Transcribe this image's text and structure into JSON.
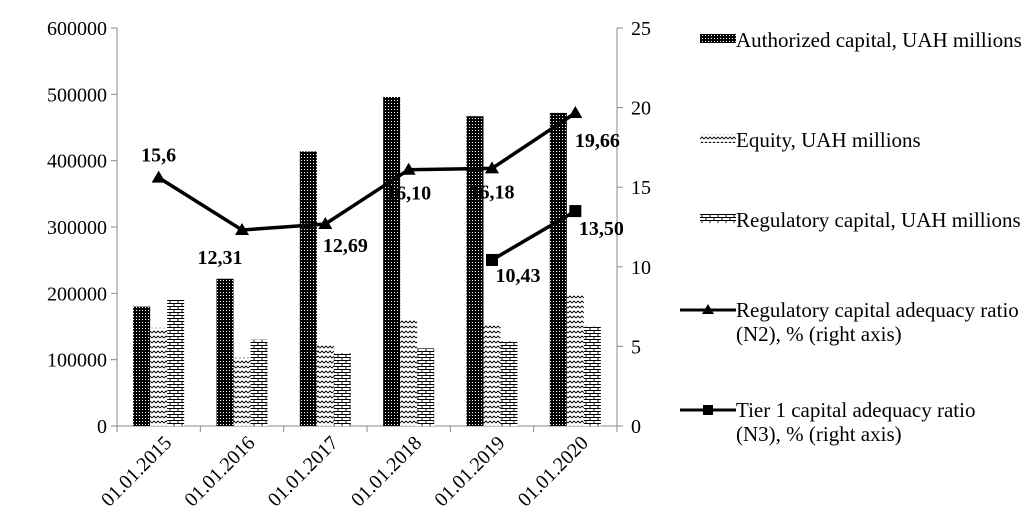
{
  "chart_data": {
    "type": "bar",
    "categories": [
      "01.01.2015",
      "01.01.2016",
      "01.01.2017",
      "01.01.2018",
      "01.01.2019",
      "01.01.2020"
    ],
    "series": [
      {
        "name": "Authorized capital, UAH millions",
        "color": "#000000",
        "pattern": "dense",
        "values": [
          180000,
          222000,
          414000,
          496000,
          467000,
          472000
        ]
      },
      {
        "name": "Equity, UAH millions",
        "color": "#000000",
        "pattern": "wave",
        "values": [
          148000,
          103000,
          123000,
          160000,
          155000,
          200000
        ]
      },
      {
        "name": "Regulatory capital, UAH millions",
        "color": "#000000",
        "pattern": "brick",
        "values": [
          190000,
          130000,
          110000,
          117000,
          128000,
          150000
        ]
      },
      {
        "name": "Regulatory capital adequacy ratio (N2), % (right axis)",
        "type": "line",
        "marker": "triangle",
        "axis": "y2",
        "color": "#000000",
        "values": [
          15.6,
          12.31,
          12.69,
          16.1,
          16.18,
          19.66
        ],
        "value_labels": [
          "15,6",
          "12,31",
          "12,69",
          "16,10",
          "16,18",
          "19,66"
        ]
      },
      {
        "name": "Tier 1 capital adequacy ratio (N3), % (right axis)",
        "type": "line",
        "marker": "square",
        "axis": "y2",
        "color": "#000000",
        "values": [
          null,
          null,
          null,
          null,
          10.43,
          13.5
        ],
        "value_labels": [
          null,
          null,
          null,
          null,
          "10,43",
          "13,50"
        ]
      }
    ],
    "ylim": [
      0,
      600000
    ],
    "yticks": [
      0,
      100000,
      200000,
      300000,
      400000,
      500000,
      600000
    ],
    "y2lim": [
      0,
      25
    ],
    "y2ticks": [
      0,
      5,
      10,
      15,
      20,
      25
    ]
  }
}
